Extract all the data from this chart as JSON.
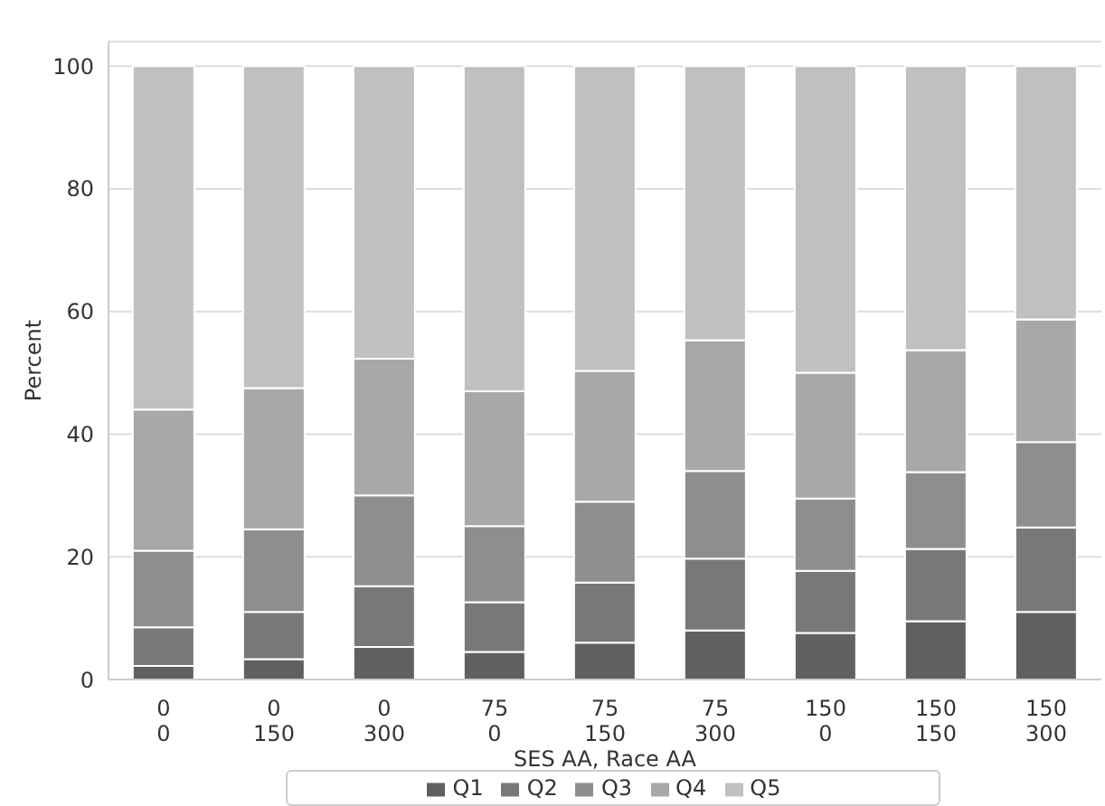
{
  "chart_data": {
    "type": "bar",
    "stacked": true,
    "xlabel": "SES AA, Race AA",
    "ylabel": "Percent",
    "categories": [
      "0\n0",
      "0\n150",
      "0\n300",
      "75\n0",
      "75\n150",
      "75\n300",
      "150\n0",
      "150\n150",
      "150\n300"
    ],
    "series": [
      {
        "name": "Q1",
        "color": "#606060",
        "values": [
          2.2,
          3.3,
          5.3,
          4.5,
          6,
          8,
          7.6,
          9.5,
          11
        ]
      },
      {
        "name": "Q2",
        "color": "#787878",
        "values": [
          6.3,
          7.7,
          9.9,
          8.1,
          9.8,
          11.7,
          10.1,
          11.8,
          13.8
        ]
      },
      {
        "name": "Q3",
        "color": "#8e8e8e",
        "values": [
          12.5,
          13.5,
          14.8,
          12.4,
          13.2,
          14.3,
          11.8,
          12.5,
          13.9
        ]
      },
      {
        "name": "Q4",
        "color": "#a8a8a8",
        "values": [
          23,
          23,
          22.3,
          22,
          21.3,
          21.3,
          20.5,
          19.9,
          20
        ]
      },
      {
        "name": "Q5",
        "color": "#c0c0c0",
        "values": [
          56,
          52.5,
          47.7,
          53,
          49.7,
          44.7,
          50,
          46.3,
          41.3
        ]
      }
    ],
    "ylim": [
      0,
      104
    ],
    "yticks": [
      0,
      20,
      40,
      60,
      80,
      100
    ],
    "grid": "y",
    "legend": "bottom"
  }
}
